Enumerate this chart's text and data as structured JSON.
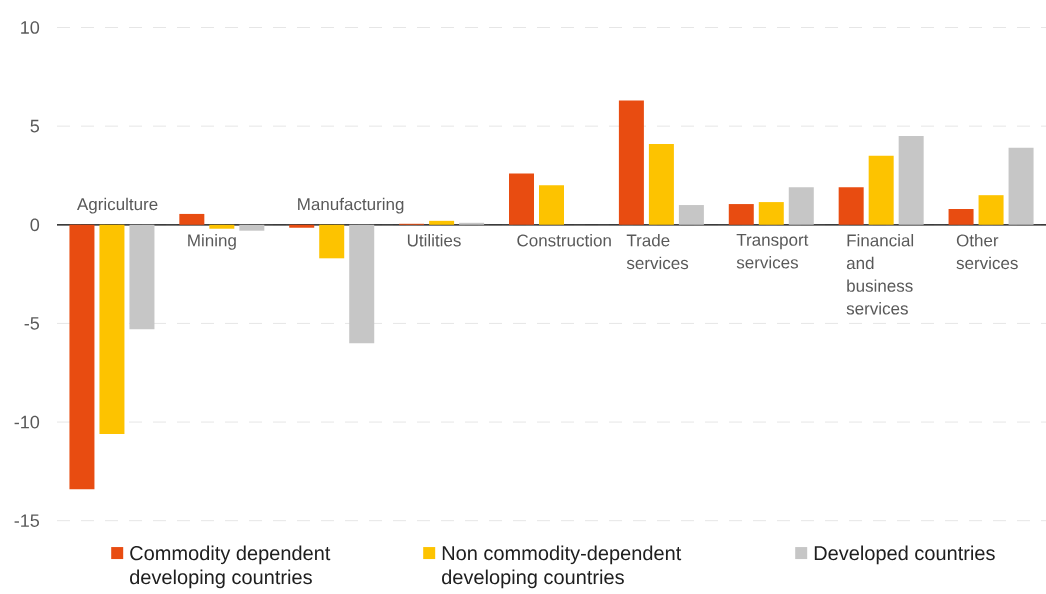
{
  "chart_data": {
    "type": "bar",
    "categories": [
      "Agriculture",
      "Mining",
      "Manufacturing",
      "Utilities",
      "Construction",
      "Trade services",
      "Transport services",
      "Financial and business services",
      "Other services"
    ],
    "series": [
      {
        "name": "Commodity dependent developing countries",
        "color": "#e84c11",
        "values": [
          -13.4,
          0.55,
          -0.15,
          0.05,
          2.6,
          6.3,
          1.05,
          1.9,
          0.8
        ]
      },
      {
        "name": "Non commodity-dependent developing countries",
        "color": "#fdc300",
        "values": [
          -10.6,
          -0.2,
          -1.7,
          0.2,
          2.0,
          4.1,
          1.15,
          3.5,
          1.5
        ]
      },
      {
        "name": "Developed countries",
        "color": "#c6c6c6",
        "values": [
          -5.3,
          -0.3,
          -6.0,
          0.1,
          null,
          1.0,
          1.9,
          4.5,
          3.9
        ]
      }
    ],
    "ylim": [
      -15,
      10
    ],
    "yticks": [
      -15,
      -10,
      -5,
      0,
      5,
      10
    ],
    "grid": "y",
    "legend": "bottom"
  }
}
